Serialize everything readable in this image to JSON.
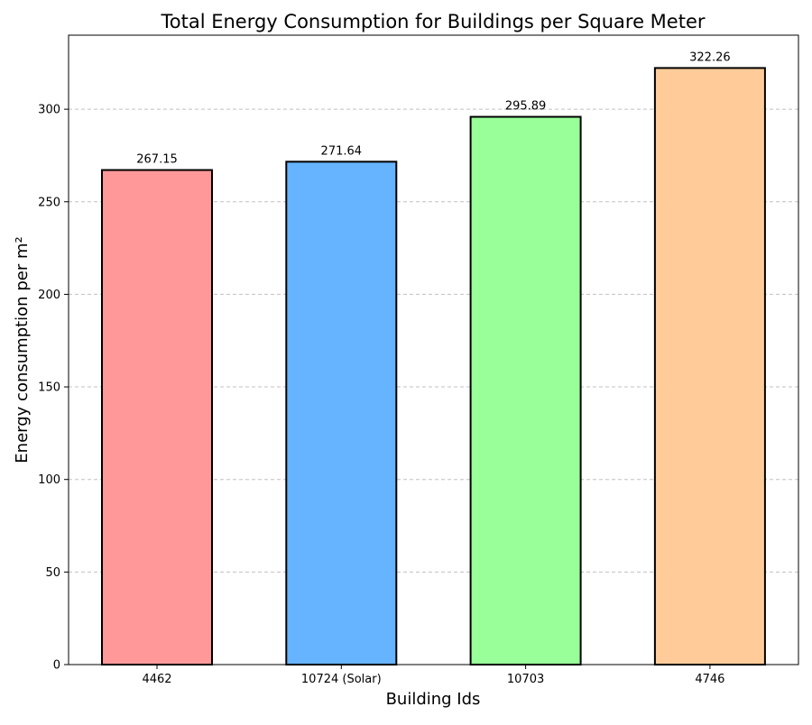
{
  "chart_data": {
    "type": "bar",
    "title": "Total Energy Consumption for Buildings per Square Meter",
    "xlabel": "Building Ids",
    "ylabel": "Energy consumption per m²",
    "categories": [
      "4462",
      "10724 (Solar)",
      "10703",
      "4746"
    ],
    "values": [
      267.15,
      271.64,
      295.89,
      322.26
    ],
    "value_labels": [
      "267.15",
      "271.64",
      "295.89",
      "322.26"
    ],
    "colors": [
      "#ff9999",
      "#66b3ff",
      "#99ff99",
      "#ffcc99"
    ],
    "ylim": [
      0,
      340
    ],
    "yticks": [
      0,
      50,
      100,
      150,
      200,
      250,
      300
    ],
    "grid": "y-dashed",
    "legend": "none"
  }
}
